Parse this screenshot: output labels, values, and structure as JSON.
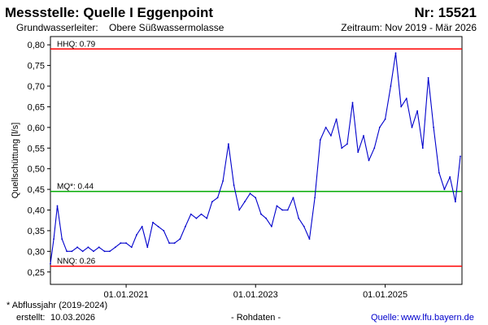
{
  "header": {
    "title": "Messstelle: Quelle I Eggenpoint",
    "number": "Nr: 15521",
    "aquifer_label": "Grundwasserleiter:",
    "aquifer_value": "Obere Süßwassermolasse",
    "period": "Zeitraum: Nov 2019 - Mär 2026"
  },
  "footer": {
    "note": "* Abflussjahr (2019-2024)",
    "created_label": "erstellt:",
    "created_date": "10.03.2026",
    "raw": "- Rohdaten -",
    "source_label": "Quelle:",
    "source_link": "www.lfu.bayern.de"
  },
  "chart_data": {
    "type": "line",
    "ylabel": "Quellschüttung [l/s]",
    "xlabel": "",
    "ylim": [
      0.22,
      0.82
    ],
    "y_ticks": [
      "0,80",
      "0,75",
      "0,70",
      "0,65",
      "0,60",
      "0,55",
      "0,50",
      "0,45",
      "0,40",
      "0,35",
      "0,30",
      "0,25"
    ],
    "y_tick_values": [
      0.8,
      0.75,
      0.7,
      0.65,
      0.6,
      0.55,
      0.5,
      0.45,
      0.4,
      0.35,
      0.3,
      0.25
    ],
    "xlim": [
      "2019-11-01",
      "2026-03-10"
    ],
    "x_ticks": [
      "01.01.2021",
      "01.01.2023",
      "01.01.2025"
    ],
    "x_tick_dates": [
      "2021-01-01",
      "2023-01-01",
      "2025-01-01"
    ],
    "grid": false,
    "series_color": "#0000cc",
    "reference_lines": [
      {
        "label": "HHQ: 0.79",
        "value": 0.79,
        "color": "#ff0000"
      },
      {
        "label": "MQ*: 0.44",
        "value": 0.445,
        "color": "#00aa00"
      },
      {
        "label": "NNQ: 0.26",
        "value": 0.264,
        "color": "#ff0000"
      }
    ],
    "series": [
      {
        "x": [
          "2019-11-01",
          "2019-11-20",
          "2019-12-10",
          "2020-01-05",
          "2020-02-01",
          "2020-03-01",
          "2020-04-01",
          "2020-05-01",
          "2020-06-01",
          "2020-07-01",
          "2020-08-01",
          "2020-09-01",
          "2020-10-01",
          "2020-11-01",
          "2020-12-01",
          "2021-01-01",
          "2021-02-01",
          "2021-03-01",
          "2021-04-01",
          "2021-05-01",
          "2021-06-01",
          "2021-07-01",
          "2021-08-01",
          "2021-09-01",
          "2021-10-01",
          "2021-11-01",
          "2021-12-01",
          "2022-01-01",
          "2022-02-01",
          "2022-03-01",
          "2022-04-01",
          "2022-05-01",
          "2022-06-01",
          "2022-07-01",
          "2022-08-01",
          "2022-09-01",
          "2022-10-01",
          "2022-11-01",
          "2022-12-01",
          "2023-01-01",
          "2023-02-01",
          "2023-03-01",
          "2023-04-01",
          "2023-05-01",
          "2023-06-01",
          "2023-07-01",
          "2023-08-01",
          "2023-09-01",
          "2023-10-01",
          "2023-11-01",
          "2023-12-01",
          "2024-01-01",
          "2024-02-01",
          "2024-03-01",
          "2024-04-01",
          "2024-05-01",
          "2024-06-01",
          "2024-07-01",
          "2024-08-01",
          "2024-09-01",
          "2024-10-01",
          "2024-11-01",
          "2024-12-01",
          "2025-01-01",
          "2025-02-01",
          "2025-03-01",
          "2025-04-01",
          "2025-05-01",
          "2025-06-01",
          "2025-07-01",
          "2025-08-01",
          "2025-09-01",
          "2025-10-01",
          "2025-11-01",
          "2025-12-01",
          "2026-01-01",
          "2026-02-01",
          "2026-03-01"
        ],
        "values": [
          0.27,
          0.33,
          0.41,
          0.33,
          0.3,
          0.3,
          0.31,
          0.3,
          0.31,
          0.3,
          0.31,
          0.3,
          0.3,
          0.31,
          0.32,
          0.32,
          0.31,
          0.34,
          0.36,
          0.31,
          0.37,
          0.36,
          0.35,
          0.32,
          0.32,
          0.33,
          0.36,
          0.39,
          0.38,
          0.39,
          0.38,
          0.42,
          0.43,
          0.47,
          0.56,
          0.46,
          0.4,
          0.42,
          0.44,
          0.43,
          0.39,
          0.38,
          0.36,
          0.41,
          0.4,
          0.4,
          0.43,
          0.38,
          0.36,
          0.33,
          0.43,
          0.57,
          0.6,
          0.58,
          0.62,
          0.55,
          0.56,
          0.66,
          0.54,
          0.58,
          0.52,
          0.55,
          0.6,
          0.62,
          0.7,
          0.78,
          0.65,
          0.67,
          0.6,
          0.64,
          0.55,
          0.72,
          0.6,
          0.49,
          0.45,
          0.48,
          0.42,
          0.53
        ]
      }
    ]
  }
}
